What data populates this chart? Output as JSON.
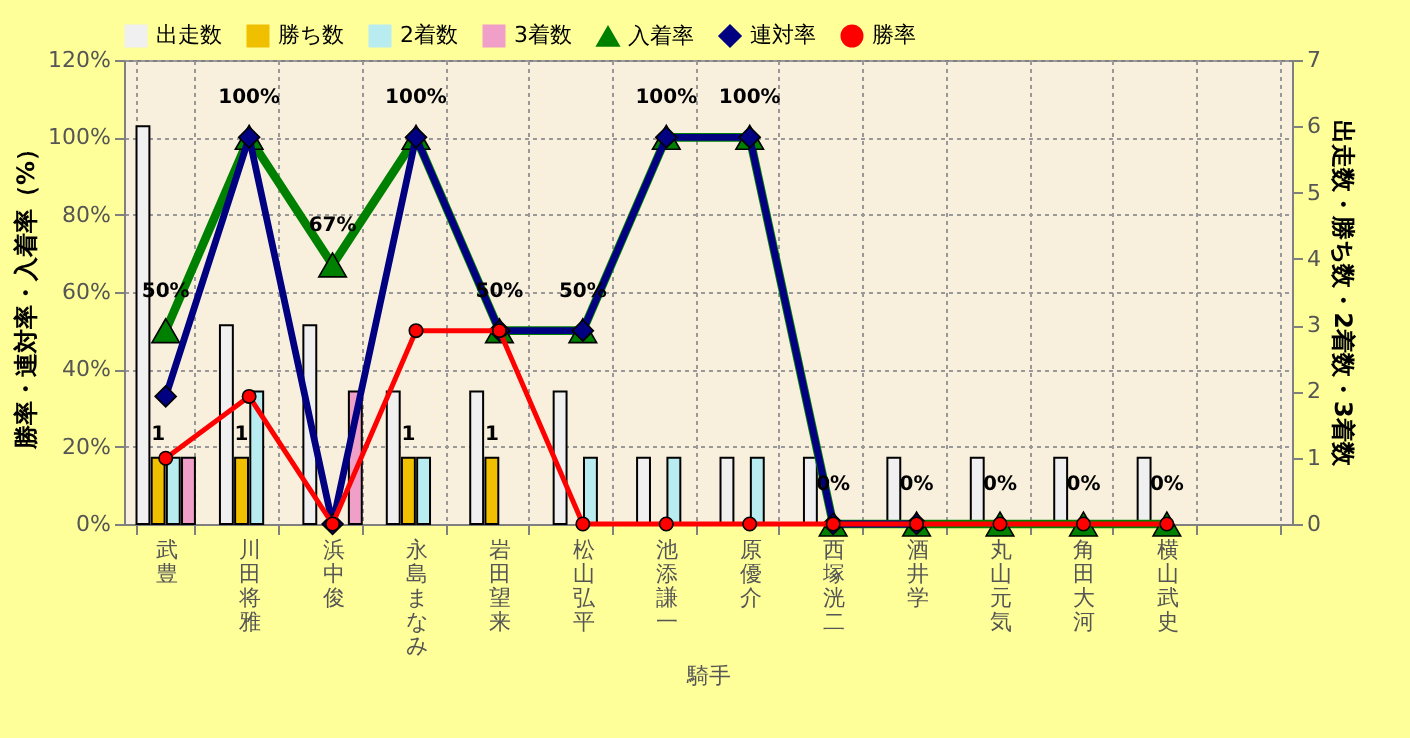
{
  "chart_data": {
    "type": "bar",
    "categories": [
      "武豊",
      "川田将雅",
      "浜中俊",
      "永島まなみ",
      "岩田望来",
      "松山弘平",
      "池添謙一",
      "原優介",
      "西塚洸二",
      "酒井学",
      "丸山元気",
      "角田大河",
      "横山武史",
      null
    ],
    "xlabel": "騎手",
    "ylabel": "勝率・連対率・入着率（%）",
    "y2label": "出走数・勝ち数・2着数・3着数",
    "ylim": [
      0,
      120
    ],
    "yticks": [
      {
        "value": 0,
        "label": "0%"
      },
      {
        "value": 20,
        "label": "20%"
      },
      {
        "value": 40,
        "label": "40%"
      },
      {
        "value": 60,
        "label": "60%"
      },
      {
        "value": 80,
        "label": "80%"
      },
      {
        "value": 100,
        "label": "100%"
      },
      {
        "value": 120,
        "label": "120%"
      }
    ],
    "y2lim": [
      0,
      7
    ],
    "y2ticks": [
      0,
      1,
      2,
      3,
      4,
      5,
      6,
      7
    ],
    "grid": true,
    "legend": "top",
    "series": [
      {
        "name": "出走数",
        "axis": "y2",
        "color": "#f0f0f0",
        "values": [
          6,
          3,
          3,
          2,
          2,
          2,
          1,
          1,
          1,
          1,
          1,
          1,
          1,
          null
        ]
      },
      {
        "name": "勝ち数",
        "axis": "y2",
        "color": "#f0c000",
        "values": [
          1,
          1,
          0,
          1,
          1,
          0,
          0,
          0,
          0,
          0,
          0,
          0,
          0,
          null
        ],
        "value_labels": [
          "1",
          "1",
          null,
          "1",
          "1",
          null,
          null,
          null,
          null,
          null,
          null,
          null,
          null,
          null
        ]
      },
      {
        "name": "2着数",
        "axis": "y2",
        "color": "#b8ecf0",
        "values": [
          1,
          2,
          0,
          1,
          0,
          1,
          1,
          1,
          0,
          0,
          0,
          0,
          0,
          null
        ]
      },
      {
        "name": "3着数",
        "axis": "y2",
        "color": "#f0a0c8",
        "values": [
          1,
          0,
          2,
          0,
          0,
          0,
          0,
          0,
          0,
          0,
          0,
          0,
          0,
          null
        ]
      },
      {
        "name": "入着率",
        "type": "line",
        "marker": "triangle",
        "color": "#008000",
        "values": [
          50,
          100,
          67,
          100,
          50,
          50,
          100,
          100,
          0,
          0,
          0,
          0,
          0,
          null
        ],
        "value_labels": [
          "50%",
          "100%",
          "67%",
          "100%",
          "50%",
          "50%",
          "100%",
          "100%",
          "0%",
          "0%",
          "0%",
          "0%",
          "0%",
          null
        ]
      },
      {
        "name": "連対率",
        "type": "line",
        "marker": "diamond",
        "color": "#000080",
        "values": [
          33,
          100,
          0,
          100,
          50,
          50,
          100,
          100,
          0,
          0,
          null,
          null,
          null,
          null
        ]
      },
      {
        "name": "勝率",
        "type": "line",
        "marker": "circle",
        "color": "#ff0000",
        "values": [
          17,
          33,
          0,
          50,
          50,
          0,
          0,
          0,
          0,
          0,
          0,
          0,
          0,
          null
        ]
      }
    ]
  }
}
